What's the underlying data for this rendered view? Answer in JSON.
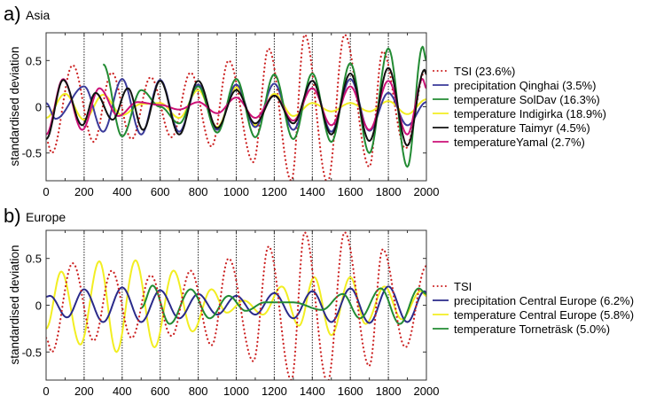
{
  "chart_data": [
    {
      "type": "line",
      "panel_letter": "a)",
      "title": "Asia",
      "xlabel": "",
      "ylabel": "standardised deviation",
      "xlim": [
        0,
        2000
      ],
      "ylim": [
        -0.8,
        0.8
      ],
      "xticks": [
        0,
        200,
        400,
        600,
        800,
        1000,
        1200,
        1400,
        1600,
        1800,
        2000
      ],
      "yticks": [
        -0.5,
        0,
        0.5
      ],
      "ytick_labels": [
        "-0.5",
        "0",
        "0.5"
      ],
      "vertical_gridlines": [
        200,
        400,
        600,
        800,
        1000,
        1200,
        1400,
        1600,
        1800
      ],
      "legend_position": "right",
      "series": [
        {
          "name": "TSI (23.6%)",
          "color": "#cc2222",
          "style": "dotted",
          "x": [
            0,
            30,
            140,
            250,
            345,
            450,
            550,
            660,
            760,
            870,
            960,
            1090,
            1170,
            1290,
            1360,
            1480,
            1570,
            1700,
            1770,
            1890,
            2000
          ],
          "y": [
            -0.35,
            -0.5,
            0.45,
            -0.38,
            0.37,
            -0.35,
            0.32,
            -0.33,
            0.37,
            -0.43,
            0.5,
            -0.6,
            0.63,
            -0.8,
            0.78,
            -0.82,
            0.78,
            -0.65,
            0.6,
            -0.45,
            0.42
          ]
        },
        {
          "name": "precipitation Qinghai (3.5%)",
          "color": "#3a3a9a",
          "style": "solid",
          "x": [
            0,
            50,
            200,
            300,
            400,
            500,
            600,
            700,
            800,
            900,
            1000,
            1100,
            1200,
            1300,
            1400,
            1500,
            1600,
            1700,
            1800,
            1900,
            2000
          ],
          "y": [
            0.04,
            -0.13,
            0.22,
            -0.27,
            0.3,
            -0.3,
            0.29,
            -0.27,
            0.24,
            -0.25,
            0.24,
            -0.22,
            0.25,
            -0.25,
            0.28,
            -0.27,
            0.3,
            -0.26,
            0.15,
            -0.2,
            0.05
          ]
        },
        {
          "name": "temperature SolDav (16.3%)",
          "color": "#228b33",
          "style": "solid",
          "x": [
            300,
            400,
            500,
            600,
            700,
            800,
            900,
            1000,
            1100,
            1200,
            1300,
            1400,
            1500,
            1600,
            1700,
            1800,
            1900,
            1980,
            2000
          ],
          "y": [
            0.46,
            -0.32,
            0.18,
            0.0,
            -0.18,
            0.22,
            -0.28,
            0.3,
            -0.33,
            0.35,
            -0.35,
            0.36,
            -0.38,
            0.47,
            -0.5,
            0.63,
            -0.65,
            0.65,
            0.5
          ]
        },
        {
          "name": "temperature Indigirka (18.9%)",
          "color": "#f2ee22",
          "style": "solid",
          "x": [
            0,
            100,
            200,
            300,
            400,
            500,
            600,
            700,
            800,
            900,
            1000,
            1100,
            1200,
            1300,
            1400,
            1500,
            1600,
            1700,
            1800,
            1900,
            2000
          ],
          "y": [
            -0.12,
            0.14,
            -0.14,
            0.13,
            -0.09,
            0.03,
            0.04,
            -0.12,
            0.18,
            -0.22,
            0.21,
            -0.2,
            0.14,
            -0.1,
            0.04,
            -0.05,
            0.04,
            -0.05,
            0.06,
            -0.08,
            0.08
          ]
        },
        {
          "name": "temperature Taimyr (4.5%)",
          "color": "#111111",
          "style": "solid",
          "x": [
            0,
            90,
            190,
            260,
            350,
            430,
            510,
            600,
            700,
            800,
            900,
            1000,
            1100,
            1200,
            1300,
            1400,
            1500,
            1600,
            1700,
            1800,
            1900,
            1990,
            2000
          ],
          "y": [
            -0.35,
            0.29,
            -0.2,
            0.15,
            -0.14,
            0.2,
            -0.25,
            0.28,
            -0.3,
            0.28,
            -0.23,
            0.18,
            -0.18,
            0.12,
            -0.18,
            0.28,
            -0.3,
            0.36,
            -0.37,
            0.42,
            -0.42,
            0.4,
            0.35
          ]
        },
        {
          "name": "temperatureYamal (2.7%)",
          "color": "#cc1177",
          "style": "solid",
          "x": [
            0,
            90,
            190,
            280,
            380,
            480,
            600,
            700,
            800,
            900,
            1000,
            1100,
            1200,
            1300,
            1400,
            1500,
            1600,
            1700,
            1800,
            1900,
            1980,
            2000
          ],
          "y": [
            -0.3,
            0.3,
            -0.25,
            0.2,
            -0.1,
            0.05,
            0.02,
            -0.03,
            0.05,
            -0.07,
            0.1,
            -0.12,
            0.12,
            -0.15,
            0.2,
            -0.2,
            0.22,
            -0.25,
            0.28,
            -0.3,
            0.3,
            0.2
          ]
        }
      ]
    },
    {
      "type": "line",
      "panel_letter": "b)",
      "title": "Europe",
      "xlabel": "",
      "ylabel": "standardised deviation",
      "xlim": [
        0,
        2000
      ],
      "ylim": [
        -0.8,
        0.8
      ],
      "xticks": [
        0,
        200,
        400,
        600,
        800,
        1000,
        1200,
        1400,
        1600,
        1800,
        2000
      ],
      "yticks": [
        -0.5,
        0,
        0.5
      ],
      "ytick_labels": [
        "-0.5",
        "0",
        "0.5"
      ],
      "vertical_gridlines": [
        200,
        400,
        600,
        800,
        1000,
        1200,
        1400,
        1600,
        1800
      ],
      "legend_position": "right",
      "series": [
        {
          "name": "TSI",
          "color": "#cc2222",
          "style": "dotted",
          "x": [
            0,
            30,
            140,
            250,
            345,
            450,
            550,
            660,
            760,
            870,
            960,
            1090,
            1170,
            1290,
            1360,
            1480,
            1570,
            1700,
            1770,
            1890,
            2000
          ],
          "y": [
            -0.35,
            -0.5,
            0.45,
            -0.38,
            0.37,
            -0.35,
            0.32,
            -0.33,
            0.37,
            -0.43,
            0.5,
            -0.6,
            0.63,
            -0.8,
            0.78,
            -0.82,
            0.78,
            -0.65,
            0.6,
            -0.45,
            0.42
          ]
        },
        {
          "name": "precipitation Central Europe (6.2%)",
          "color": "#2a2a8a",
          "style": "solid",
          "x": [
            0,
            20,
            110,
            200,
            300,
            400,
            500,
            600,
            700,
            800,
            900,
            1000,
            1100,
            1200,
            1300,
            1400,
            1500,
            1600,
            1700,
            1800,
            1900,
            1990,
            2000
          ],
          "y": [
            0.09,
            0.1,
            -0.13,
            0.17,
            -0.18,
            0.19,
            -0.18,
            0.16,
            -0.14,
            0.12,
            -0.1,
            0.1,
            -0.1,
            0.13,
            -0.14,
            0.15,
            -0.18,
            0.18,
            -0.19,
            0.2,
            -0.18,
            0.15,
            0.12
          ]
        },
        {
          "name": "temperature Central Europe (5.8%)",
          "color": "#f2ee22",
          "style": "solid",
          "x": [
            0,
            80,
            180,
            280,
            370,
            470,
            570,
            670,
            770,
            870,
            950,
            1040,
            1140,
            1240,
            1330,
            1410,
            1500,
            1600,
            1680,
            1780,
            1870,
            1970,
            2000
          ],
          "y": [
            -0.25,
            0.36,
            -0.42,
            0.47,
            -0.5,
            0.48,
            -0.45,
            0.37,
            -0.28,
            0.17,
            -0.08,
            0.05,
            -0.1,
            0.2,
            -0.22,
            0.3,
            -0.32,
            0.3,
            -0.2,
            0.2,
            -0.15,
            0.15,
            0.1
          ]
        },
        {
          "name": "temperature Torneträsk (5.0%)",
          "color": "#228b33",
          "style": "solid",
          "x": [
            500,
            560,
            650,
            760,
            860,
            960,
            1050,
            1150,
            1300,
            1450,
            1560,
            1650,
            1760,
            1860,
            1960,
            2000
          ],
          "y": [
            -0.03,
            0.21,
            -0.2,
            0.17,
            -0.14,
            0.1,
            -0.06,
            0.03,
            0.03,
            -0.05,
            0.12,
            -0.14,
            0.18,
            -0.2,
            0.18,
            0.12
          ]
        }
      ]
    }
  ]
}
